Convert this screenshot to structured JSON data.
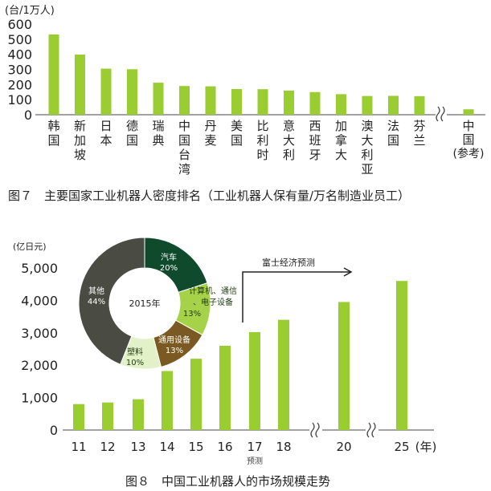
{
  "chart_data": [
    {
      "type": "bar",
      "title": "图７　主要国家工业机器人密度排名（工业机器人保有量/万名制造业员工）",
      "ylabel": "(台/1万人)",
      "ylim": [
        0,
        600
      ],
      "yticks": [
        "0",
        "100",
        "200",
        "300",
        "400",
        "500",
        "600"
      ],
      "categories": [
        "韩国",
        "新加坡",
        "日本",
        "德国",
        "瑞典",
        "中国台湾",
        "丹麦",
        "美国",
        "比利时",
        "意大利",
        "西班牙",
        "加拿大",
        "澳大利亚",
        "法国",
        "芬兰",
        "中国（参考）"
      ],
      "values": [
        531,
        398,
        305,
        301,
        212,
        190,
        188,
        170,
        169,
        160,
        150,
        136,
        124,
        125,
        123,
        36
      ],
      "bar_color": "#9acd32",
      "axis_break_before_last": true
    },
    {
      "type": "bar",
      "title": "图８　中国工业机器人的市场规模走势",
      "ylabel": "(亿日元)",
      "ylim": [
        0,
        5000
      ],
      "yticks": [
        "0",
        "1,000",
        "2,000",
        "3,000",
        "4,000",
        "5,000"
      ],
      "categories": [
        "11",
        "12",
        "13",
        "14",
        "15",
        "16",
        "17",
        "18",
        "20",
        "25"
      ],
      "values": [
        800,
        850,
        950,
        1820,
        2200,
        2600,
        3020,
        3400,
        3950,
        4600
      ],
      "xunit": "(年)",
      "forecast_label": "预测",
      "forecast_arrow_label": "富士经济预测",
      "bar_color": "#9acd32",
      "pie": {
        "type": "pie",
        "center_label": "2015年",
        "slices": [
          {
            "name": "汽车",
            "pct": "20%",
            "value": 20,
            "color": "#0f4a2c"
          },
          {
            "name": "计算机、通信、电子设备",
            "pct": "13%",
            "value": 13,
            "color": "#a6d24a"
          },
          {
            "name": "通用设备",
            "pct": "13%",
            "value": 13,
            "color": "#7a5a22"
          },
          {
            "name": "塑料",
            "pct": "10%",
            "value": 10,
            "color": "#e3f1c8"
          },
          {
            "name": "其他",
            "pct": "44%",
            "value": 44,
            "color": "#4a4b42"
          }
        ]
      }
    }
  ]
}
